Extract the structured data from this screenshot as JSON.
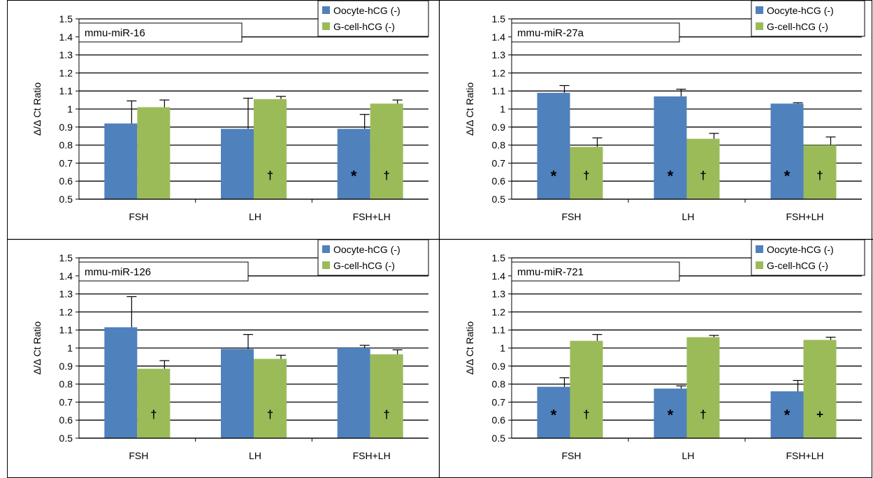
{
  "chart_data": [
    {
      "type": "bar",
      "title": "mmu-miR-16",
      "ylabel": "Δ/Δ Ct Ratio",
      "xlabel": "",
      "categories": [
        "FSH",
        "LH",
        "FSH+LH"
      ],
      "ylim": [
        0.5,
        1.5
      ],
      "yticks": [
        "0.5",
        "0.6",
        "0.7",
        "0.8",
        "0.9",
        "1",
        "1.1",
        "1.2",
        "1.3",
        "1.4",
        "1.5"
      ],
      "grid": true,
      "legend": "top-right",
      "series": [
        {
          "name": "Oocyte-hCG (-)",
          "color": "#4f81bd",
          "values": [
            0.92,
            0.89,
            0.89
          ],
          "errors": [
            0.125,
            0.17,
            0.08
          ],
          "markers": [
            "",
            "",
            "*"
          ]
        },
        {
          "name": "G-cell-hCG (-)",
          "color": "#9bbb59",
          "values": [
            1.01,
            1.055,
            1.03
          ],
          "errors": [
            0.04,
            0.015,
            0.02
          ],
          "markers": [
            "",
            "†",
            "†"
          ]
        }
      ]
    },
    {
      "type": "bar",
      "title": "mmu-miR-27a",
      "ylabel": "Δ/Δ Ct Ratio",
      "xlabel": "",
      "categories": [
        "FSH",
        "LH",
        "FSH+LH"
      ],
      "ylim": [
        0.5,
        1.5
      ],
      "yticks": [
        "0.5",
        "0.6",
        "0.7",
        "0.8",
        "0.9",
        "1",
        "1.1",
        "1.2",
        "1.3",
        "1.4",
        "1.5"
      ],
      "grid": true,
      "legend": "top-right",
      "series": [
        {
          "name": "Oocyte-hCG (-)",
          "color": "#4f81bd",
          "values": [
            1.09,
            1.07,
            1.03
          ],
          "errors": [
            0.04,
            0.04,
            0.005
          ],
          "markers": [
            "*",
            "*",
            "*"
          ]
        },
        {
          "name": "G-cell-hCG (-)",
          "color": "#9bbb59",
          "values": [
            0.79,
            0.835,
            0.8
          ],
          "errors": [
            0.05,
            0.03,
            0.045
          ],
          "markers": [
            "†",
            "†",
            "†"
          ]
        }
      ]
    },
    {
      "type": "bar",
      "title": "mmu-miR-126",
      "ylabel": "Δ/Δ Ct Ratio",
      "xlabel": "",
      "categories": [
        "FSH",
        "LH",
        "FSH+LH"
      ],
      "ylim": [
        0.5,
        1.5
      ],
      "yticks": [
        "0.5",
        "0.6",
        "0.7",
        "0.8",
        "0.9",
        "1",
        "1.1",
        "1.2",
        "1.3",
        "1.4",
        "1.5"
      ],
      "grid": true,
      "legend": "top-right",
      "series": [
        {
          "name": "Oocyte-hCG (-)",
          "color": "#4f81bd",
          "values": [
            1.115,
            0.995,
            1.0
          ],
          "errors": [
            0.17,
            0.08,
            0.015
          ],
          "markers": [
            "",
            "",
            ""
          ]
        },
        {
          "name": "G-cell-hCG (-)",
          "color": "#9bbb59",
          "values": [
            0.885,
            0.94,
            0.965
          ],
          "errors": [
            0.045,
            0.02,
            0.025
          ],
          "markers": [
            "†",
            "†",
            "†"
          ]
        }
      ]
    },
    {
      "type": "bar",
      "title": "mmu-miR-721",
      "ylabel": "Δ/Δ Ct Ratio",
      "xlabel": "",
      "categories": [
        "FSH",
        "LH",
        "FSH+LH"
      ],
      "ylim": [
        0.5,
        1.5
      ],
      "yticks": [
        "0.5",
        "0.6",
        "0.7",
        "0.8",
        "0.9",
        "1",
        "1.1",
        "1.2",
        "1.3",
        "1.4",
        "1.5"
      ],
      "grid": true,
      "legend": "top-right",
      "series": [
        {
          "name": "Oocyte-hCG (-)",
          "color": "#4f81bd",
          "values": [
            0.785,
            0.775,
            0.76
          ],
          "errors": [
            0.05,
            0.015,
            0.06
          ],
          "markers": [
            "*",
            "*",
            "*"
          ]
        },
        {
          "name": "G-cell-hCG (-)",
          "color": "#9bbb59",
          "values": [
            1.04,
            1.06,
            1.045
          ],
          "errors": [
            0.035,
            0.01,
            0.015
          ],
          "markers": [
            "†",
            "†",
            "+"
          ]
        }
      ]
    }
  ]
}
